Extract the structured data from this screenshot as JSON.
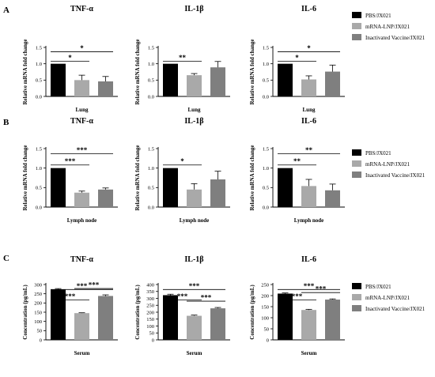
{
  "colors": {
    "series": [
      "#000000",
      "#a9a9a9",
      "#7f7f7f"
    ],
    "axis": "#000000"
  },
  "legend": {
    "entries": [
      "PBS/JX021",
      "mRNA-LNP/JX021",
      "Inactivated Vaccine/JX021"
    ]
  },
  "panels": [
    {
      "letter": "A"
    },
    {
      "letter": "B"
    },
    {
      "letter": "C"
    }
  ],
  "chart_data": [
    {
      "type": "bar",
      "panel": "A",
      "title": "TNF-α",
      "xlabel": "Lung",
      "ylabel": "Relative mRNA fold change",
      "ylim": [
        0,
        1.5
      ],
      "yticks": [
        "0.0",
        "0.5",
        "1.0",
        "1.5"
      ],
      "categories": [
        "PBS/JX021",
        "mRNA-LNP/JX021",
        "Inactivated Vaccine/JX021"
      ],
      "values": [
        1.0,
        0.5,
        0.46
      ],
      "errors": [
        0,
        0.15,
        0.15
      ],
      "significance": [
        {
          "from": 0,
          "to": 1,
          "label": "*"
        },
        {
          "from": 0,
          "to": 2,
          "label": "*"
        }
      ]
    },
    {
      "type": "bar",
      "panel": "A",
      "title": "IL-1β",
      "xlabel": "Lung",
      "ylabel": "Relative mRNA fold change",
      "ylim": [
        0,
        1.5
      ],
      "yticks": [
        "0.0",
        "0.5",
        "1.0",
        "1.5"
      ],
      "categories": [
        "PBS/JX021",
        "mRNA-LNP/JX021",
        "Inactivated Vaccine/JX021"
      ],
      "values": [
        1.0,
        0.65,
        0.89
      ],
      "errors": [
        0,
        0.05,
        0.18
      ],
      "significance": [
        {
          "from": 0,
          "to": 1,
          "label": "**"
        }
      ]
    },
    {
      "type": "bar",
      "panel": "A",
      "title": "IL-6",
      "xlabel": "Lung",
      "ylabel": "Relative mRNA fold change",
      "ylim": [
        0,
        1.5
      ],
      "yticks": [
        "0.0",
        "0.5",
        "1.0",
        "1.5"
      ],
      "categories": [
        "PBS/JX021",
        "mRNA-LNP/JX021",
        "Inactivated Vaccine/JX021"
      ],
      "values": [
        1.0,
        0.52,
        0.76
      ],
      "errors": [
        0,
        0.11,
        0.2
      ],
      "significance": [
        {
          "from": 0,
          "to": 1,
          "label": "*"
        },
        {
          "from": 0,
          "to": 2,
          "label": "*"
        }
      ]
    },
    {
      "type": "bar",
      "panel": "B",
      "title": "TNF-α",
      "xlabel": "Lymph node",
      "ylabel": "Relative mRNA fold change",
      "ylim": [
        0,
        1.5
      ],
      "yticks": [
        "0.0",
        "0.5",
        "1.0",
        "1.5"
      ],
      "categories": [
        "PBS/JX021",
        "mRNA-LNP/JX021",
        "Inactivated Vaccine/JX021"
      ],
      "values": [
        1.0,
        0.37,
        0.45
      ],
      "errors": [
        0,
        0.04,
        0.04
      ],
      "significance": [
        {
          "from": 0,
          "to": 1,
          "label": "***"
        },
        {
          "from": 0,
          "to": 2,
          "label": "***"
        }
      ]
    },
    {
      "type": "bar",
      "panel": "B",
      "title": "IL-1β",
      "xlabel": "Lymph node",
      "ylabel": "Relative mRNA fold change",
      "ylim": [
        0,
        1.5
      ],
      "yticks": [
        "0.0",
        "0.5",
        "1.0",
        "1.5"
      ],
      "categories": [
        "PBS/JX021",
        "mRNA-LNP/JX021",
        "Inactivated Vaccine/JX021"
      ],
      "values": [
        1.0,
        0.45,
        0.71
      ],
      "errors": [
        0,
        0.15,
        0.21
      ],
      "significance": [
        {
          "from": 0,
          "to": 1,
          "label": "*"
        }
      ]
    },
    {
      "type": "bar",
      "panel": "B",
      "title": "IL-6",
      "xlabel": "Lymph node",
      "ylabel": "Relative mRNA fold change",
      "ylim": [
        0,
        1.5
      ],
      "yticks": [
        "0.0",
        "0.5",
        "1.0",
        "1.5"
      ],
      "categories": [
        "PBS/JX021",
        "mRNA-LNP/JX021",
        "Inactivated Vaccine/JX021"
      ],
      "values": [
        1.0,
        0.54,
        0.43
      ],
      "errors": [
        0,
        0.17,
        0.16
      ],
      "significance": [
        {
          "from": 0,
          "to": 1,
          "label": "**"
        },
        {
          "from": 0,
          "to": 2,
          "label": "**"
        }
      ]
    },
    {
      "type": "bar",
      "panel": "C",
      "title": "TNF-α",
      "xlabel": "Serum",
      "ylabel": "Concentration (pg/mL)",
      "ylim": [
        0,
        300
      ],
      "yticks": [
        "0",
        "50",
        "100",
        "150",
        "200",
        "250",
        "300"
      ],
      "categories": [
        "PBS/JX021",
        "mRNA-LNP/JX021",
        "Inactivated Vaccine/JX021"
      ],
      "values": [
        272,
        145,
        238
      ],
      "errors": [
        6,
        2,
        6
      ],
      "significance": [
        {
          "from": 0,
          "to": 1,
          "label": "***"
        },
        {
          "from": 0,
          "to": 2,
          "label": "***"
        },
        {
          "from": 1,
          "to": 2,
          "label": "***"
        }
      ]
    },
    {
      "type": "bar",
      "panel": "C",
      "title": "IL-1β",
      "xlabel": "Serum",
      "ylabel": "Concentration (pg/mL)",
      "ylim": [
        0,
        400
      ],
      "yticks": [
        "0",
        "50",
        "100",
        "150",
        "200",
        "250",
        "300",
        "350",
        "400"
      ],
      "categories": [
        "PBS/JX021",
        "mRNA-LNP/JX021",
        "Inactivated Vaccine/JX021"
      ],
      "values": [
        323,
        174,
        228
      ],
      "errors": [
        7,
        5,
        6
      ],
      "significance": [
        {
          "from": 0,
          "to": 1,
          "label": "***"
        },
        {
          "from": 0,
          "to": 2,
          "label": "***"
        },
        {
          "from": 1,
          "to": 2,
          "label": "***"
        }
      ]
    },
    {
      "type": "bar",
      "panel": "C",
      "title": "IL-6",
      "xlabel": "Serum",
      "ylabel": "Concentration (pg/mL)",
      "ylim": [
        0,
        250
      ],
      "yticks": [
        "0",
        "50",
        "100",
        "150",
        "200",
        "250"
      ],
      "categories": [
        "PBS/JX021",
        "mRNA-LNP/JX021",
        "Inactivated Vaccine/JX021"
      ],
      "values": [
        209,
        135,
        182
      ],
      "errors": [
        3,
        3,
        3
      ],
      "significance": [
        {
          "from": 0,
          "to": 1,
          "label": "***"
        },
        {
          "from": 0,
          "to": 2,
          "label": "***"
        },
        {
          "from": 1,
          "to": 2,
          "label": "***"
        }
      ]
    }
  ]
}
